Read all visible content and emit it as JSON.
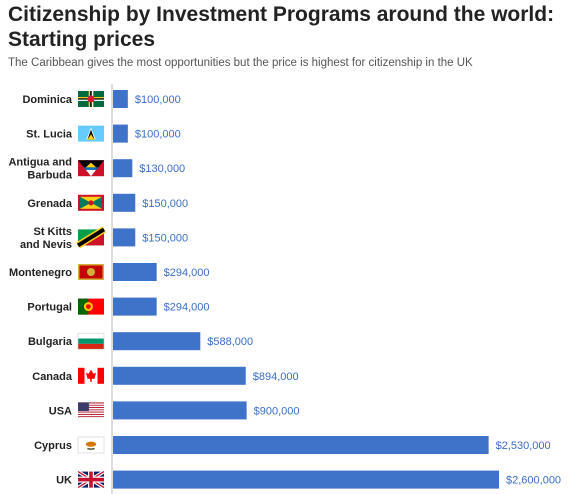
{
  "header": {
    "title_line1": "Citizenship by Investment Programs around the world:",
    "title_line2": "Starting prices",
    "subtitle": "The Caribbean gives the most opportunities but the price is highest for citizenship in the UK"
  },
  "colors": {
    "bar": "#3f72c9",
    "value_text": "#3a6ec6",
    "axis": "#bbbbbb"
  },
  "chart_data": {
    "type": "bar",
    "orientation": "horizontal",
    "title": "Citizenship by Investment Programs around the world: Starting prices",
    "subtitle": "The Caribbean gives the most opportunities but the price is highest for citizenship in the UK",
    "categories": [
      [
        "Dominica"
      ],
      [
        "St. Lucia"
      ],
      [
        "Antigua and",
        "Barbuda"
      ],
      [
        "Grenada"
      ],
      [
        "St Kitts",
        "and Nevis"
      ],
      [
        "Montenegro"
      ],
      [
        "Portugal"
      ],
      [
        "Bulgaria"
      ],
      [
        "Canada"
      ],
      [
        "USA"
      ],
      [
        "Cyprus"
      ],
      [
        "UK"
      ]
    ],
    "flags": [
      "dominica-flag",
      "st-lucia-flag",
      "antigua-barbuda-flag",
      "grenada-flag",
      "st-kitts-nevis-flag",
      "montenegro-flag",
      "portugal-flag",
      "bulgaria-flag",
      "canada-flag",
      "usa-flag",
      "cyprus-flag",
      "uk-flag"
    ],
    "values": [
      100000,
      100000,
      130000,
      150000,
      150000,
      294000,
      294000,
      588000,
      894000,
      900000,
      2530000,
      2600000
    ],
    "value_labels": [
      "$100,000",
      "$100,000",
      "$130,000",
      "$150,000",
      "$150,000",
      "$294,000",
      "$294,000",
      "$588,000",
      "$894,000",
      "$900,000",
      "$2,530,000",
      "$2,600,000"
    ],
    "xlim": [
      0,
      2600000
    ],
    "grid": false,
    "legend": "none"
  }
}
